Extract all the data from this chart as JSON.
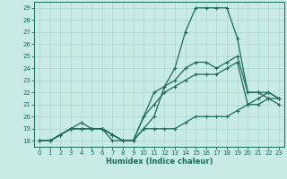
{
  "xlabel": "Humidex (Indice chaleur)",
  "xlim": [
    -0.5,
    23.5
  ],
  "ylim": [
    17.5,
    29.5
  ],
  "xticks": [
    0,
    1,
    2,
    3,
    4,
    5,
    6,
    7,
    8,
    9,
    10,
    11,
    12,
    13,
    14,
    15,
    16,
    17,
    18,
    19,
    20,
    21,
    22,
    23
  ],
  "yticks": [
    18,
    19,
    20,
    21,
    22,
    23,
    24,
    25,
    26,
    27,
    28,
    29
  ],
  "bg_color": "#c8ebe5",
  "grid_color": "#a8d5ce",
  "line_color": "#1a6b5a",
  "lines": [
    [
      18,
      18,
      18.5,
      19,
      19.5,
      19,
      19,
      18.5,
      18,
      18,
      19,
      19,
      19,
      19,
      19.5,
      20,
      20,
      20,
      20,
      20.5,
      21,
      21,
      21.5,
      21
    ],
    [
      18,
      18,
      18.5,
      19,
      19,
      19,
      19,
      18.5,
      18,
      18,
      20,
      21,
      22,
      22.5,
      23,
      23.5,
      23.5,
      23.5,
      24,
      24.5,
      21,
      21.5,
      22,
      21.5
    ],
    [
      18,
      18,
      18.5,
      19,
      19,
      19,
      19,
      18.5,
      18,
      18,
      20,
      22,
      22.5,
      23,
      24,
      24.5,
      24.5,
      24,
      24.5,
      25,
      22,
      22,
      22,
      21.5
    ],
    [
      18,
      18,
      18.5,
      19,
      19,
      19,
      19,
      18,
      18,
      18,
      19,
      20,
      22.5,
      24,
      27,
      29,
      29,
      29,
      29,
      26.5,
      22,
      22,
      21.5,
      21.5
    ]
  ]
}
